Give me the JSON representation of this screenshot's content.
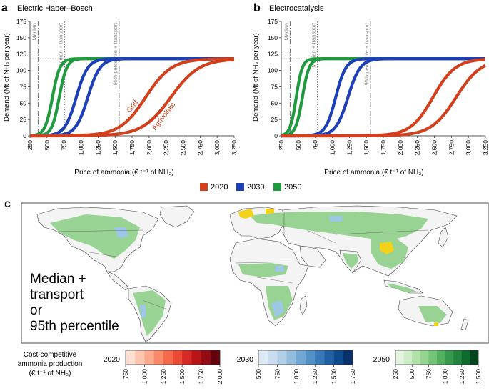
{
  "chart_data": [
    {
      "type": "line",
      "panel_letter": "a",
      "title": "Electric Haber–Bosch",
      "xlabel": "Price of ammonia (€ t⁻¹ of NH₃)",
      "ylabel": "Demand (Mt of NH₃ per year)",
      "xlim": [
        250,
        3250
      ],
      "ylim": [
        0,
        175
      ],
      "xticks": [
        "250",
        "500",
        "750",
        "1,000",
        "1,250",
        "1,500",
        "1,750",
        "2,000",
        "2,250",
        "2,500",
        "2,750",
        "3,000",
        "3,250"
      ],
      "yticks": [
        "0",
        "25",
        "50",
        "75",
        "100",
        "125",
        "150",
        "175"
      ],
      "saturation": 118,
      "reference_lines": [
        {
          "x": 370,
          "label": "Median",
          "style": "dashdot"
        },
        {
          "x": 760,
          "label": "Median + transport",
          "style": "dotted"
        },
        {
          "x": 1560,
          "label": "95th percentile + transport",
          "style": "dashdot"
        }
      ],
      "series": [
        {
          "name": "2050",
          "color": "#1f9a3e",
          "mid": 580,
          "width": 55
        },
        {
          "name": "2050",
          "color": "#1f9a3e",
          "mid": 680,
          "width": 55
        },
        {
          "name": "2030",
          "color": "#1d3fb8",
          "mid": 930,
          "width": 85
        },
        {
          "name": "2030",
          "color": "#1d3fb8",
          "mid": 1100,
          "width": 90
        },
        {
          "name": "2020",
          "color": "#d2401e",
          "mid": 1950,
          "width": 190
        },
        {
          "name": "2020",
          "color": "#d2401e",
          "mid": 2320,
          "width": 210
        }
      ],
      "annotations": [
        {
          "text": "Grid",
          "x": 1720,
          "y": 35
        },
        {
          "text": "Agrivoltaic",
          "x": 2090,
          "y": 8
        }
      ]
    },
    {
      "type": "line",
      "panel_letter": "b",
      "title": "Electrocatalysis",
      "xlabel": "Price of ammonia (€ t⁻¹ of NH₃)",
      "ylabel": "Demand (Mt of NH₃ per year)",
      "xlim": [
        250,
        3250
      ],
      "ylim": [
        0,
        175
      ],
      "xticks": [
        "250",
        "500",
        "750",
        "1,000",
        "1,250",
        "1,500",
        "1,750",
        "2,000",
        "2,250",
        "2,500",
        "2,750",
        "3,000",
        "3,250"
      ],
      "yticks": [
        "0",
        "25",
        "50",
        "75",
        "100",
        "125",
        "150",
        "175"
      ],
      "saturation": 118,
      "reference_lines": [
        {
          "x": 380,
          "label": "Median",
          "style": "dashdot"
        },
        {
          "x": 780,
          "label": "Median + transport",
          "style": "dotted"
        },
        {
          "x": 1560,
          "label": "95th percentile + transport",
          "style": "dashdot"
        }
      ],
      "series": [
        {
          "name": "2050",
          "color": "#1f9a3e",
          "mid": 470,
          "width": 45
        },
        {
          "name": "2050",
          "color": "#1f9a3e",
          "mid": 560,
          "width": 50
        },
        {
          "name": "2030",
          "color": "#1d3fb8",
          "mid": 1050,
          "width": 75
        },
        {
          "name": "2030",
          "color": "#1d3fb8",
          "mid": 1230,
          "width": 90
        },
        {
          "name": "2020",
          "color": "#d2401e",
          "mid": 2480,
          "width": 165
        },
        {
          "name": "2020",
          "color": "#d2401e",
          "mid": 2820,
          "width": 185
        }
      ],
      "annotations": []
    }
  ],
  "legend": [
    {
      "label": "2020",
      "color": "#d2401e"
    },
    {
      "label": "2030",
      "color": "#1d3fb8"
    },
    {
      "label": "2050",
      "color": "#1f9a3e"
    }
  ],
  "map": {
    "panel_letter": "c",
    "overlay_text": [
      "Median +",
      "transport",
      "or",
      "95th percentile"
    ]
  },
  "colorbars": {
    "title": [
      "Cost-competitive",
      "ammonia production",
      "(€ t⁻¹ of NH₃)"
    ],
    "bars": [
      {
        "year": "2020",
        "ticks": [
          "750",
          "1,000",
          "1,250",
          "1,500",
          "1,750",
          "2,000"
        ],
        "colors": [
          "#fee0d2",
          "#fcc5b0",
          "#fca98c",
          "#fb8a6a",
          "#f66a4c",
          "#ec4a36",
          "#d52a26",
          "#b91519",
          "#950b13",
          "#67000d"
        ]
      },
      {
        "year": "2030",
        "ticks": [
          "500",
          "750",
          "1,000",
          "1,250",
          "1,500",
          "1,750"
        ],
        "colors": [
          "#deebf7",
          "#c9ddef",
          "#b1cfe7",
          "#93bcdd",
          "#72a7d3",
          "#5391c5",
          "#3878b7",
          "#2160a4",
          "#0f4a8c",
          "#08306b"
        ]
      },
      {
        "year": "2050",
        "ticks": [
          "250",
          "500",
          "750",
          "1,000",
          "1,250",
          "1,500"
        ],
        "colors": [
          "#e5f5e0",
          "#cdecc7",
          "#b2e0aa",
          "#94d390",
          "#74c476",
          "#52b05f",
          "#37994c",
          "#23843d",
          "#0f6a2e",
          "#00441b"
        ]
      }
    ]
  }
}
